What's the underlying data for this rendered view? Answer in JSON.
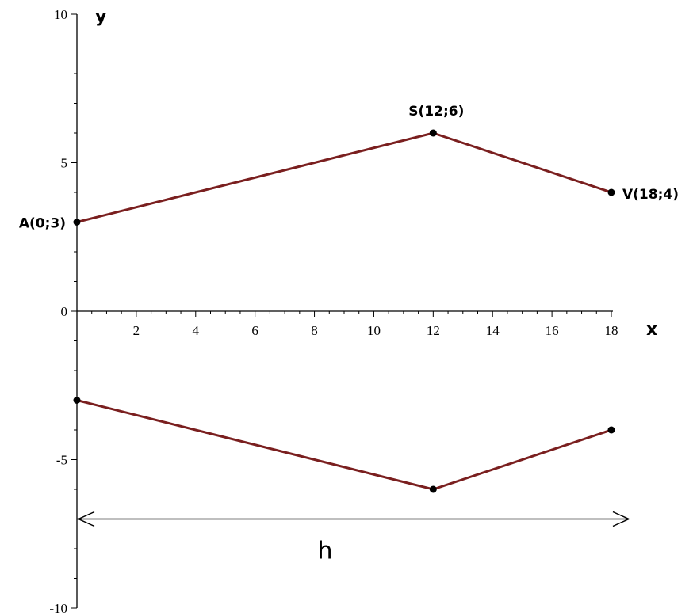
{
  "chart_data": {
    "type": "line",
    "xlabel": "x",
    "ylabel": "y",
    "xlim": [
      0,
      18
    ],
    "ylim": [
      -10,
      10
    ],
    "x_ticks": [
      2,
      4,
      6,
      8,
      10,
      12,
      14,
      16,
      18
    ],
    "y_ticks": [
      10,
      5,
      0,
      -5,
      -10
    ],
    "grid": false,
    "series": [
      {
        "x": [
          0,
          12,
          18
        ],
        "y": [
          3,
          6,
          4
        ],
        "point_labels": [
          "A(0;3)",
          "S(12;6)",
          "V(18;4)"
        ]
      },
      {
        "x": [
          0,
          12,
          18
        ],
        "y": [
          -3,
          -6,
          -4
        ]
      }
    ],
    "annotations": [
      {
        "label": "h",
        "from_x": 0,
        "to_x": 18,
        "y": -7
      }
    ],
    "line_color": "#7a1f1f"
  }
}
